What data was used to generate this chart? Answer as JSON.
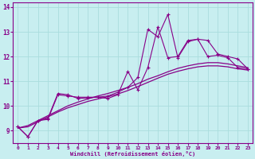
{
  "title": "",
  "xlabel": "Windchill (Refroidissement éolien,°C)",
  "ylabel": "",
  "bg_color": "#c8eef0",
  "line_color": "#880088",
  "grid_color": "#aadddd",
  "ylim": [
    8.5,
    14.2
  ],
  "xlim": [
    -0.5,
    23.5
  ],
  "yticks": [
    9,
    10,
    11,
    12,
    13,
    14
  ],
  "xticks": [
    0,
    1,
    2,
    3,
    4,
    5,
    6,
    7,
    8,
    9,
    10,
    11,
    12,
    13,
    14,
    15,
    16,
    17,
    18,
    19,
    20,
    21,
    22,
    23
  ],
  "series1_x": [
    0,
    1,
    2,
    3,
    4,
    5,
    6,
    7,
    8,
    9,
    10,
    11,
    12,
    13,
    14,
    15,
    16,
    17,
    18,
    19,
    20,
    21,
    22,
    23
  ],
  "series1_y": [
    9.15,
    8.75,
    9.4,
    9.45,
    10.45,
    10.4,
    10.35,
    10.35,
    10.35,
    10.4,
    10.55,
    10.75,
    11.15,
    13.1,
    12.8,
    13.7,
    11.95,
    12.6,
    12.7,
    12.65,
    12.1,
    12.0,
    11.9,
    11.5
  ],
  "series2_x": [
    0,
    1,
    2,
    3,
    4,
    5,
    6,
    7,
    8,
    9,
    10,
    11,
    12,
    13,
    14,
    15,
    16,
    17,
    18,
    19,
    20,
    21,
    22,
    23
  ],
  "series2_y": [
    9.15,
    8.75,
    9.4,
    9.5,
    10.5,
    10.45,
    10.3,
    10.32,
    10.35,
    10.3,
    10.45,
    11.4,
    10.65,
    11.55,
    13.2,
    11.95,
    12.0,
    12.65,
    12.7,
    12.0,
    12.05,
    11.95,
    11.55,
    11.5
  ],
  "smooth1_x": [
    0,
    1,
    2,
    3,
    4,
    5,
    6,
    7,
    8,
    9,
    10,
    11,
    12,
    13,
    14,
    15,
    16,
    17,
    18,
    19,
    20,
    21,
    22,
    23
  ],
  "smooth1_y": [
    9.1,
    9.15,
    9.35,
    9.55,
    9.75,
    9.92,
    10.05,
    10.18,
    10.28,
    10.37,
    10.48,
    10.62,
    10.78,
    10.95,
    11.12,
    11.28,
    11.4,
    11.5,
    11.58,
    11.62,
    11.62,
    11.58,
    11.5,
    11.45
  ],
  "smooth2_x": [
    0,
    1,
    2,
    3,
    4,
    5,
    6,
    7,
    8,
    9,
    10,
    11,
    12,
    13,
    14,
    15,
    16,
    17,
    18,
    19,
    20,
    21,
    22,
    23
  ],
  "smooth2_y": [
    9.1,
    9.2,
    9.4,
    9.6,
    9.8,
    10.0,
    10.15,
    10.28,
    10.4,
    10.5,
    10.62,
    10.75,
    10.9,
    11.08,
    11.22,
    11.38,
    11.52,
    11.62,
    11.7,
    11.75,
    11.75,
    11.7,
    11.62,
    11.55
  ]
}
